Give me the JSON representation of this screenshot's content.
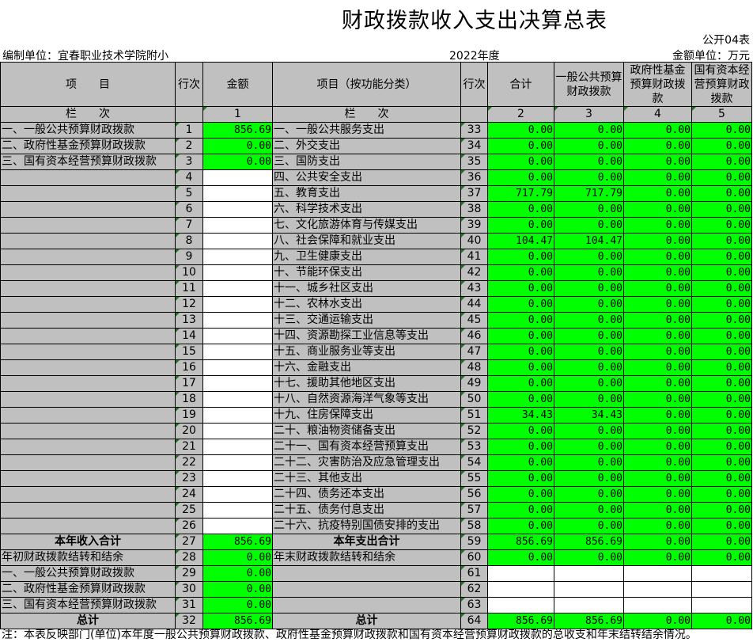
{
  "title": "财政拨款收入支出决算总表",
  "form_no": "公开04表",
  "unit": "编制单位：宜春职业技术学院附小",
  "year": "2022年度",
  "currency": "金额单位：万元",
  "headers": [
    "项　　目",
    "行次",
    "金额",
    "项目（按功能分类）",
    "行次",
    "合计",
    "一般公共预算财政拨款",
    "政府性基金预算财政拨款",
    "国有资本经营预算财政拨款"
  ],
  "colnum": [
    "栏　　次",
    "",
    "1",
    "栏　　次",
    "",
    "2",
    "3",
    "4",
    "5"
  ],
  "rows": [
    [
      "一、一般公共预算财政拨款",
      "1",
      "856.69",
      "一、一般公共服务支出",
      "33",
      [
        "0.00",
        "0.00",
        "0.00",
        "0.00"
      ]
    ],
    [
      "二、政府性基金预算财政拨款",
      "2",
      "0.00",
      "二、外交支出",
      "34",
      [
        "0.00",
        "0.00",
        "0.00",
        "0.00"
      ]
    ],
    [
      "三、国有资本经营预算财政拨款",
      "3",
      "0.00",
      "三、国防支出",
      "35",
      [
        "0.00",
        "0.00",
        "0.00",
        "0.00"
      ]
    ],
    [
      "",
      "4",
      null,
      "四、公共安全支出",
      "36",
      [
        "0.00",
        "0.00",
        "0.00",
        "0.00"
      ]
    ],
    [
      "",
      "5",
      null,
      "五、教育支出",
      "37",
      [
        "717.79",
        "717.79",
        "0.00",
        "0.00"
      ]
    ],
    [
      "",
      "6",
      null,
      "六、科学技术支出",
      "38",
      [
        "0.00",
        "0.00",
        "0.00",
        "0.00"
      ]
    ],
    [
      "",
      "7",
      null,
      "七、文化旅游体育与传媒支出",
      "39",
      [
        "0.00",
        "0.00",
        "0.00",
        "0.00"
      ]
    ],
    [
      "",
      "8",
      null,
      "八、社会保障和就业支出",
      "40",
      [
        "104.47",
        "104.47",
        "0.00",
        "0.00"
      ]
    ],
    [
      "",
      "9",
      null,
      "九、卫生健康支出",
      "41",
      [
        "0.00",
        "0.00",
        "0.00",
        "0.00"
      ]
    ],
    [
      "",
      "10",
      null,
      "十、节能环保支出",
      "42",
      [
        "0.00",
        "0.00",
        "0.00",
        "0.00"
      ]
    ],
    [
      "",
      "11",
      null,
      "十一、城乡社区支出",
      "43",
      [
        "0.00",
        "0.00",
        "0.00",
        "0.00"
      ]
    ],
    [
      "",
      "12",
      null,
      "十二、农林水支出",
      "44",
      [
        "0.00",
        "0.00",
        "0.00",
        "0.00"
      ]
    ],
    [
      "",
      "13",
      null,
      "十三、交通运输支出",
      "45",
      [
        "0.00",
        "0.00",
        "0.00",
        "0.00"
      ]
    ],
    [
      "",
      "14",
      null,
      "十四、资源勘探工业信息等支出",
      "46",
      [
        "0.00",
        "0.00",
        "0.00",
        "0.00"
      ]
    ],
    [
      "",
      "15",
      null,
      "十五、商业服务业等支出",
      "47",
      [
        "0.00",
        "0.00",
        "0.00",
        "0.00"
      ]
    ],
    [
      "",
      "16",
      null,
      "十六、金融支出",
      "48",
      [
        "0.00",
        "0.00",
        "0.00",
        "0.00"
      ]
    ],
    [
      "",
      "17",
      null,
      "十七、援助其他地区支出",
      "49",
      [
        "0.00",
        "0.00",
        "0.00",
        "0.00"
      ]
    ],
    [
      "",
      "18",
      null,
      "十八、自然资源海洋气象等支出",
      "50",
      [
        "0.00",
        "0.00",
        "0.00",
        "0.00"
      ]
    ],
    [
      "",
      "19",
      null,
      "十九、住房保障支出",
      "51",
      [
        "34.43",
        "34.43",
        "0.00",
        "0.00"
      ]
    ],
    [
      "",
      "20",
      null,
      "二十、粮油物资储备支出",
      "52",
      [
        "0.00",
        "0.00",
        "0.00",
        "0.00"
      ]
    ],
    [
      "",
      "21",
      null,
      "二十一、国有资本经营预算支出",
      "53",
      [
        "0.00",
        "0.00",
        "0.00",
        "0.00"
      ]
    ],
    [
      "",
      "22",
      null,
      "二十二、灾害防治及应急管理支出",
      "54",
      [
        "0.00",
        "0.00",
        "0.00",
        "0.00"
      ]
    ],
    [
      "",
      "23",
      null,
      "二十三、其他支出",
      "55",
      [
        "0.00",
        "0.00",
        "0.00",
        "0.00"
      ]
    ],
    [
      "",
      "24",
      null,
      "二十四、债务还本支出",
      "56",
      [
        "0.00",
        "0.00",
        "0.00",
        "0.00"
      ]
    ],
    [
      "",
      "25",
      null,
      "二十五、债务付息支出",
      "57",
      [
        "0.00",
        "0.00",
        "0.00",
        "0.00"
      ]
    ],
    [
      "",
      "26",
      null,
      "二十六、抗疫特别国债安排的支出",
      "58",
      [
        "0.00",
        "0.00",
        "0.00",
        "0.00"
      ]
    ],
    [
      "本年收入合计",
      "27",
      "856.69",
      "本年支出合计",
      "59",
      [
        "856.69",
        "856.69",
        "0.00",
        "0.00"
      ],
      true
    ],
    [
      "年初财政拨款结转和结余",
      "28",
      "0.00",
      "年末财政拨款结转和结余",
      "60",
      [
        "0.00",
        "0.00",
        "0.00",
        "0.00"
      ]
    ],
    [
      "一、一般公共预算财政拨款",
      "29",
      "0.00",
      "",
      "61",
      null
    ],
    [
      "二、政府性基金预算财政拨款",
      "30",
      "0.00",
      "",
      "62",
      null
    ],
    [
      "三、国有资本经营预算财政拨款",
      "31",
      "0.00",
      "",
      "63",
      null
    ],
    [
      "总计",
      "32",
      "856.69",
      "总计",
      "64",
      [
        "856.69",
        "856.69",
        "0.00",
        "0.00"
      ],
      true
    ]
  ],
  "note": "注：本表反映部门(单位)本年度一般公共预算财政拨款、政府性基金预算财政拨款和国有资本经营预算财政拨款的总收支和年末结转结余情况。",
  "colors": {
    "cell_green": "#00ff00",
    "header_gray": "#c0c0c0"
  }
}
